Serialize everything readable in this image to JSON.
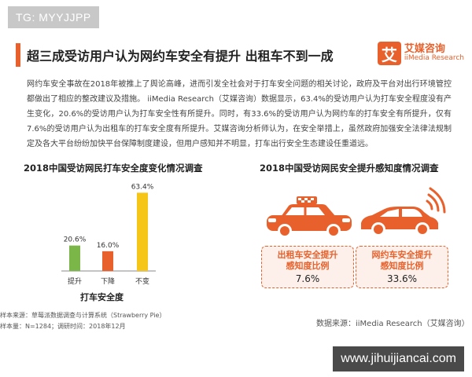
{
  "watermark_top": "TG: MYYJJPP",
  "watermark_bottom": "www.jihuijiancai.com",
  "header": {
    "title": "超三成受访用户认为网约车安全有提升 出租车不到一成",
    "brand_logo_char": "艾",
    "brand_cn": "艾媒咨询",
    "brand_en": "iiMedia Research"
  },
  "intro": "网约车安全事故在2018年被推上了舆论高峰，进而引发全社会对于打车安全问题的相关讨论，政府及平台对出行环境管控都做出了相应的整改建议及措施。 iiMedia Research（艾媒咨询）数据显示，63.4%的受访用户认为打车安全程度没有产生变化，20.6%的受访用户认为打车安全性有所提升。同时，有33.6%的受访用户认为网约车的打车安全有所提升，仅有7.6%的受访用户认为出租车的打车安全度有所提升。艾媒咨询分析师认为，在安全举措上，虽然政府加强安全法律法规制定及各大平台纷纷加快平台保障制度建设，但用户感知并不明显，打车出行安全生态建设任重道远。",
  "left_chart": {
    "subtitle": "2018中国受访网民打车安全度变化情况调查",
    "xlabel": "打车安全度",
    "note_line1": "样本来源：草莓派数据调查与计算系统（Strawberry Pie）",
    "note_line2": "样本量：N=1284；调研时间：2018年12月"
  },
  "right_panel": {
    "subtitle": "2018中国受访网民安全提升感知度情况调查",
    "source": "数据来源：iiMedia Research（艾媒咨询）",
    "taxi_icon": "taxi-car-icon",
    "ridehail_icon": "connected-car-icon"
  },
  "colors": {
    "accent": "#e8612c",
    "bar_up": "#7ab648",
    "bar_down": "#e8612c",
    "bar_same": "#f5c518"
  },
  "chart_data": [
    {
      "type": "bar",
      "title": "2018中国受访网民打车安全度变化情况调查",
      "xlabel": "打车安全度",
      "ylabel": "",
      "categories": [
        "提升",
        "下降",
        "不变"
      ],
      "values": [
        20.6,
        16.0,
        63.4
      ],
      "value_labels": [
        "20.6%",
        "16.0%",
        "63.4%"
      ],
      "ylim": [
        0,
        70
      ],
      "grid": false
    },
    {
      "type": "table",
      "title": "2018中国受访网民安全提升感知度情况调查",
      "categories": [
        "出租车安全提升感知度比例",
        "网约车安全提升感知度比例"
      ],
      "labels": [
        [
          "出租车安全提升",
          "感知度比例"
        ],
        [
          "网约车安全提升",
          "感知度比例"
        ]
      ],
      "values": [
        7.6,
        33.6
      ],
      "value_labels": [
        "7.6%",
        "33.6%"
      ]
    }
  ]
}
